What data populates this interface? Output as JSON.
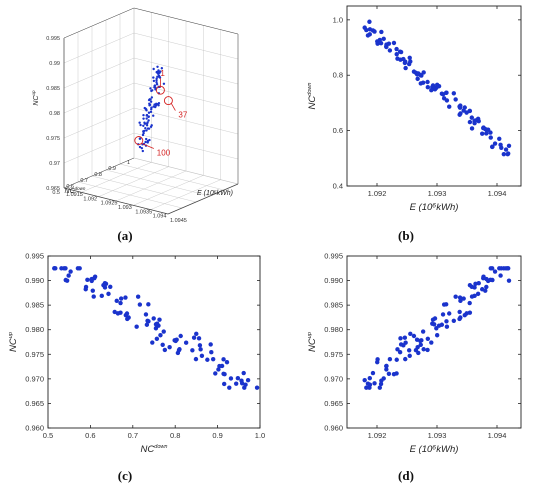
{
  "panels": [
    {
      "label": "(a)"
    },
    {
      "label": "(b)"
    },
    {
      "label": "(c)"
    },
    {
      "label": "(d)"
    }
  ],
  "chart_data": [
    {
      "id": "a",
      "type": "scatter3d",
      "point_color": "#1a33cc",
      "xlabel_main": "E",
      "xlabel_rest": " (10⁶kWh)",
      "ylabel_main": "NC",
      "ylabel_sup": "down",
      "zlabel_main": "NC",
      "zlabel_sup": "up",
      "xlim": [
        1.0915,
        1.0945
      ],
      "ylim": [
        0.5,
        1.0
      ],
      "zlim": [
        0.965,
        0.995
      ],
      "x_ticks": [
        "1.0915",
        "1.092",
        "1.0925",
        "1.093",
        "1.0935",
        "1.094",
        "1.0945"
      ],
      "y_ticks": [
        "0.5",
        "0.6",
        "0.7",
        "0.8",
        "0.9",
        "1"
      ],
      "z_ticks": [
        "0.965",
        "0.97",
        "0.975",
        "0.98",
        "0.985",
        "0.99",
        "0.995"
      ],
      "annotations": [
        {
          "text": "1",
          "x": 1.0942,
          "y": 0.52,
          "z": 0.989
        },
        {
          "text": "37",
          "x": 1.0933,
          "y": 0.8,
          "z": 0.982
        },
        {
          "text": "100",
          "x": 1.0918,
          "y": 0.96,
          "z": 0.9695
        }
      ]
    },
    {
      "id": "b",
      "type": "scatter",
      "point_color": "#1a33cc",
      "xlabel_main": "E",
      "xlabel_rest": " (10⁶kWh)",
      "ylabel_main": "NC",
      "ylabel_sup": "down",
      "xlim": [
        1.0915,
        1.0944
      ],
      "ylim": [
        0.4,
        1.05
      ],
      "x_ticks": [
        1.092,
        1.093,
        1.094
      ],
      "x_tick_labels": [
        "1.092",
        "1.093",
        "1.094"
      ],
      "y_ticks": [
        0.4,
        0.6,
        0.8,
        1.0
      ],
      "y_tick_labels": [
        "0.4",
        "0.6",
        "0.8",
        "1.0"
      ]
    },
    {
      "id": "c",
      "type": "scatter",
      "point_color": "#1a33cc",
      "xlabel_main": "NC",
      "xlabel_sup": "down",
      "ylabel_main": "NC",
      "ylabel_sup": "up",
      "xlim": [
        0.5,
        1.0
      ],
      "ylim": [
        0.96,
        0.995
      ],
      "x_ticks": [
        0.5,
        0.6,
        0.7,
        0.8,
        0.9,
        1.0
      ],
      "x_tick_labels": [
        "0.5",
        "0.6",
        "0.7",
        "0.8",
        "0.9",
        "1.0"
      ],
      "y_ticks": [
        0.96,
        0.965,
        0.97,
        0.975,
        0.98,
        0.985,
        0.99,
        0.995
      ],
      "y_tick_labels": [
        "0.960",
        "0.965",
        "0.970",
        "0.975",
        "0.980",
        "0.985",
        "0.990",
        "0.995"
      ]
    },
    {
      "id": "d",
      "type": "scatter",
      "point_color": "#1a33cc",
      "xlabel_main": "E",
      "xlabel_rest": " (10⁶kWh)",
      "ylabel_main": "NC",
      "ylabel_sup": "up",
      "xlim": [
        1.0915,
        1.0944
      ],
      "ylim": [
        0.96,
        0.995
      ],
      "x_ticks": [
        1.092,
        1.093,
        1.094
      ],
      "x_tick_labels": [
        "1.092",
        "1.093",
        "1.094"
      ],
      "y_ticks": [
        0.96,
        0.965,
        0.97,
        0.975,
        0.98,
        0.985,
        0.99,
        0.995
      ],
      "y_tick_labels": [
        "0.960",
        "0.965",
        "0.970",
        "0.975",
        "0.980",
        "0.985",
        "0.990",
        "0.995"
      ]
    }
  ]
}
